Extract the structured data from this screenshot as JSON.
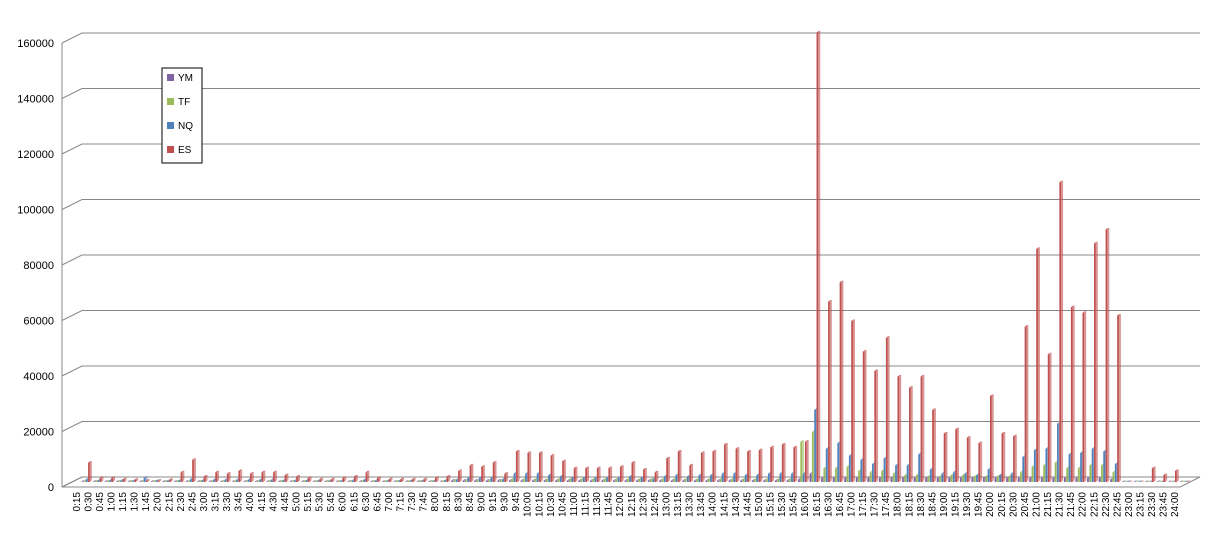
{
  "chart_data": {
    "type": "bar3d",
    "categories": [
      "0:15",
      "0:30",
      "0:45",
      "1:00",
      "1:15",
      "1:30",
      "1:45",
      "2:00",
      "2:15",
      "2:30",
      "2:45",
      "3:00",
      "3:15",
      "3:30",
      "3:45",
      "4:00",
      "4:15",
      "4:30",
      "4:45",
      "5:00",
      "5:15",
      "5:30",
      "5:45",
      "6:00",
      "6:15",
      "6:30",
      "6:45",
      "7:00",
      "7:15",
      "7:30",
      "7:45",
      "8:00",
      "8:15",
      "8:30",
      "8:45",
      "9:00",
      "9:15",
      "9:30",
      "9:45",
      "10:00",
      "10:15",
      "10:30",
      "10:45",
      "11:00",
      "11:15",
      "11:30",
      "11:45",
      "12:00",
      "12:15",
      "12:30",
      "12:45",
      "13:00",
      "13:15",
      "13:30",
      "13:45",
      "14:00",
      "14:15",
      "14:30",
      "14:45",
      "15:00",
      "15:15",
      "15:30",
      "15:45",
      "16:00",
      "16:15",
      "16:30",
      "16:45",
      "17:00",
      "17:15",
      "17:30",
      "17:45",
      "18:00",
      "18:15",
      "18:30",
      "18:45",
      "19:00",
      "19:15",
      "19:30",
      "19:45",
      "20:00",
      "20:15",
      "20:30",
      "20:45",
      "21:00",
      "21:15",
      "21:30",
      "21:45",
      "22:00",
      "22:15",
      "22:30",
      "22:45",
      "23:00",
      "23:15",
      "23:30",
      "23:45",
      "24:00"
    ],
    "series": [
      {
        "name": "YM",
        "color": "#8064a2",
        "values": [
          100,
          100,
          100,
          100,
          100,
          100,
          100,
          100,
          100,
          100,
          100,
          100,
          100,
          100,
          100,
          100,
          100,
          100,
          100,
          100,
          100,
          100,
          100,
          100,
          100,
          100,
          100,
          100,
          100,
          100,
          100,
          100,
          500,
          500,
          500,
          500,
          500,
          500,
          500,
          500,
          500,
          500,
          500,
          500,
          500,
          500,
          500,
          500,
          500,
          500,
          500,
          500,
          500,
          500,
          500,
          500,
          500,
          500,
          500,
          500,
          500,
          500,
          1000,
          3000,
          1500,
          1500,
          1500,
          1500,
          1500,
          1500,
          1500,
          1500,
          1500,
          1500,
          1500,
          1500,
          1500,
          1500,
          1500,
          1500,
          1500,
          1500,
          1500,
          1500,
          1500,
          1500,
          1500,
          1500,
          1500,
          1000,
          0,
          0,
          0,
          0,
          0,
          0
        ]
      },
      {
        "name": "TF",
        "color": "#9bbb59",
        "values": [
          200,
          200,
          200,
          200,
          200,
          200,
          200,
          200,
          200,
          200,
          200,
          200,
          200,
          200,
          200,
          200,
          200,
          200,
          200,
          200,
          200,
          200,
          200,
          200,
          200,
          200,
          200,
          200,
          200,
          200,
          200,
          200,
          500,
          500,
          500,
          500,
          500,
          1000,
          1000,
          1000,
          1000,
          1000,
          1000,
          1000,
          1000,
          1000,
          1000,
          1000,
          1000,
          1000,
          1000,
          1000,
          1000,
          1000,
          1000,
          1000,
          1000,
          1000,
          1000,
          1000,
          1000,
          1000,
          14500,
          18000,
          5000,
          5000,
          5500,
          4000,
          3500,
          4000,
          3000,
          2500,
          2500,
          2000,
          2000,
          2500,
          2500,
          2000,
          2000,
          2000,
          2000,
          3500,
          5500,
          6000,
          7000,
          5000,
          5000,
          6000,
          6000,
          3500,
          0,
          0,
          0,
          0,
          0,
          0
        ]
      },
      {
        "name": "NQ",
        "color": "#4f81bd",
        "values": [
          1000,
          500,
          500,
          500,
          300,
          1500,
          300,
          300,
          500,
          1000,
          500,
          800,
          800,
          800,
          800,
          800,
          800,
          500,
          500,
          500,
          300,
          300,
          300,
          500,
          800,
          500,
          300,
          300,
          300,
          300,
          300,
          500,
          800,
          1500,
          1500,
          1500,
          1000,
          3000,
          3000,
          3000,
          2500,
          2000,
          1500,
          1500,
          1500,
          1500,
          1500,
          2000,
          1500,
          1000,
          2000,
          2500,
          2000,
          2500,
          2500,
          3000,
          3000,
          2500,
          2500,
          3000,
          3000,
          3000,
          3000,
          26000,
          12000,
          14000,
          9500,
          8000,
          6500,
          8500,
          6000,
          6000,
          10000,
          4500,
          3000,
          3500,
          3000,
          2500,
          4500,
          2500,
          3000,
          9000,
          11500,
          12000,
          21000,
          10000,
          10500,
          12000,
          11000,
          6500,
          0,
          0,
          0,
          0,
          0,
          0
        ]
      },
      {
        "name": "ES",
        "color": "#c0504d",
        "values": [
          7000,
          1500,
          1500,
          1000,
          800,
          500,
          500,
          800,
          3500,
          8000,
          2000,
          3500,
          3000,
          4000,
          3000,
          3500,
          3500,
          2500,
          2000,
          1500,
          1000,
          1000,
          1500,
          2000,
          3500,
          1500,
          1000,
          1000,
          1000,
          1000,
          1500,
          2000,
          4000,
          6000,
          5500,
          7000,
          3000,
          11000,
          10500,
          10500,
          9500,
          7500,
          5000,
          5000,
          5000,
          5000,
          5500,
          7000,
          4500,
          3500,
          8500,
          11000,
          6000,
          10500,
          11000,
          13500,
          12000,
          11000,
          11500,
          12500,
          13500,
          12500,
          14500,
          162000,
          65000,
          72000,
          58000,
          47000,
          40000,
          52000,
          38000,
          34000,
          38000,
          26000,
          17500,
          19000,
          16000,
          14000,
          31000,
          17500,
          16500,
          56000,
          84000,
          46000,
          108000,
          63000,
          61000,
          86000,
          91000,
          60000,
          0,
          0,
          5000,
          2500,
          4000,
          0
        ]
      }
    ],
    "ylim": [
      0,
      160000
    ],
    "yticks": [
      0,
      20000,
      40000,
      60000,
      80000,
      100000,
      120000,
      140000,
      160000
    ],
    "grid": true
  }
}
